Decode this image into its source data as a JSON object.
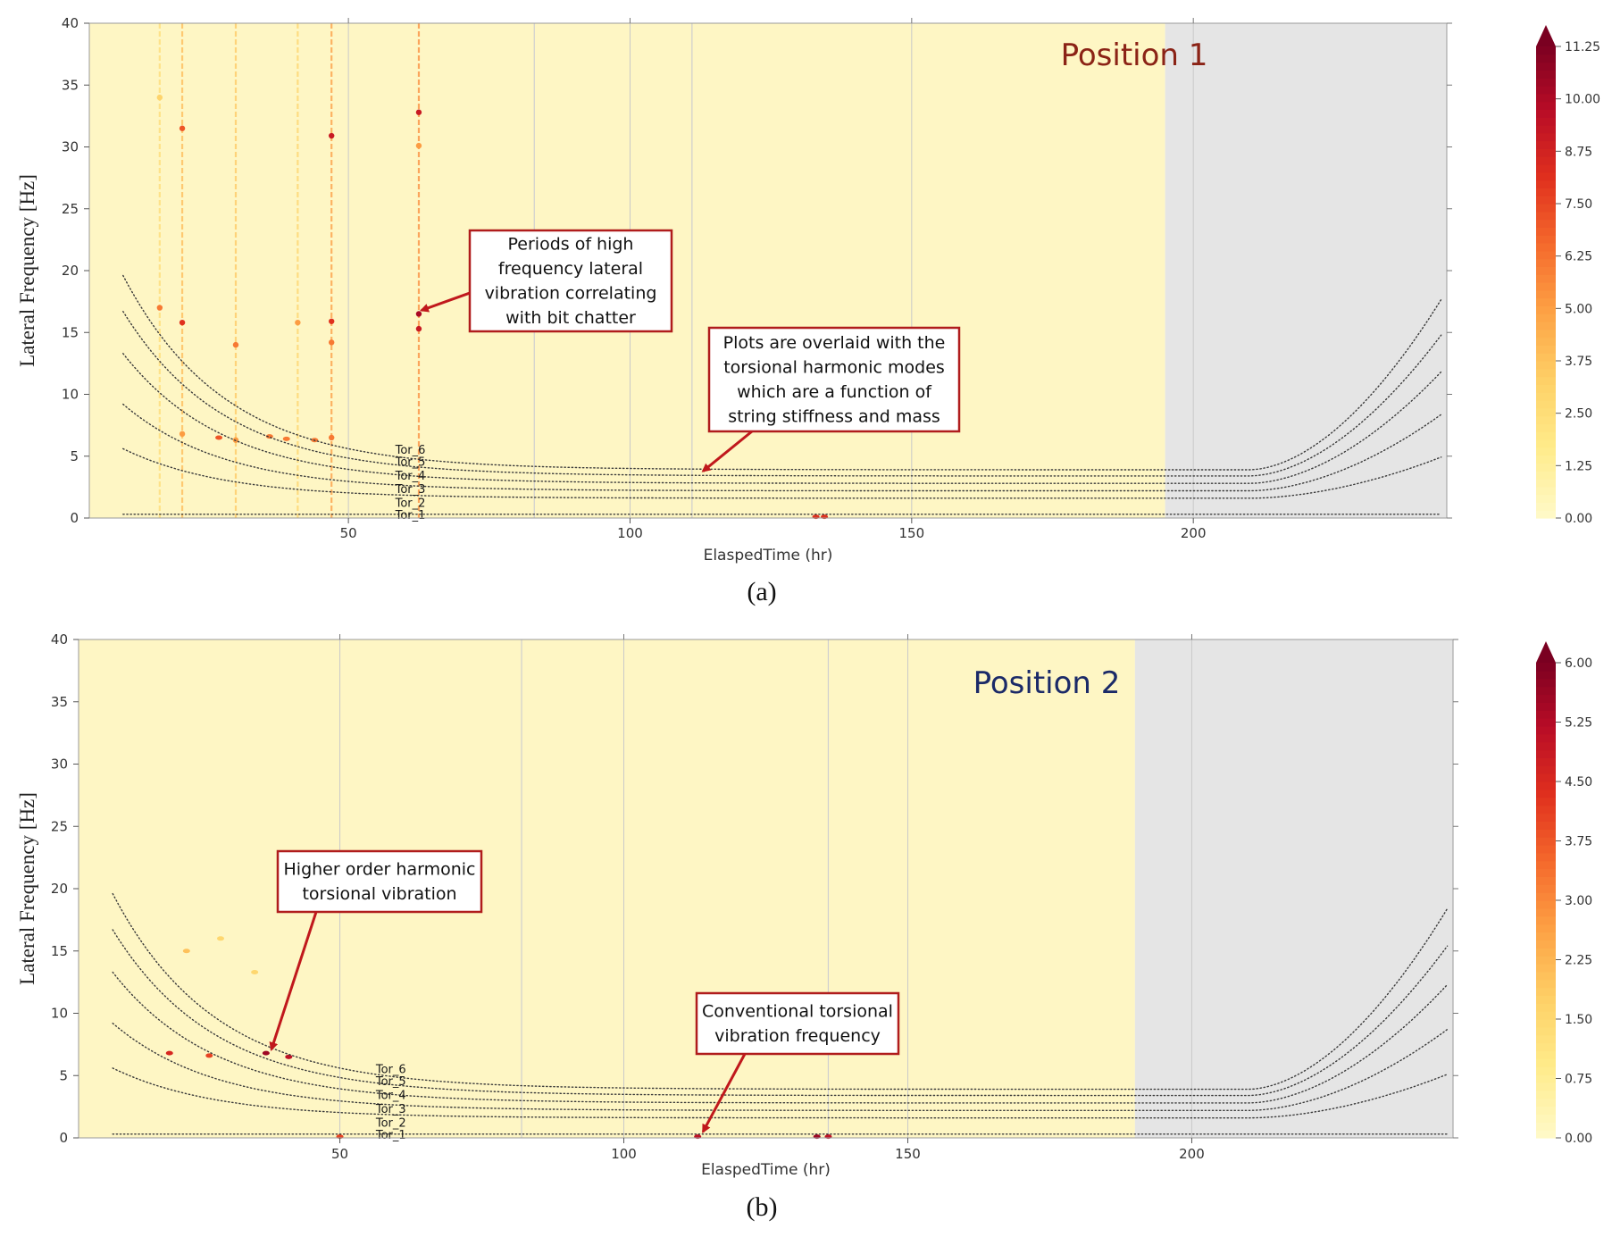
{
  "colors": {
    "plot_bg": "#fef6c4",
    "no_data_bg": "#e5e5e5",
    "annotation_border": "#b01c1c",
    "arrow": "#c0181c",
    "position1_title": "#8b2316",
    "position2_title": "#1b2a68",
    "colormap": [
      "#fff9c6",
      "#ffeb8a",
      "#fed066",
      "#fda245",
      "#f56a2c",
      "#e0301e",
      "#b80c26",
      "#7a0021"
    ]
  },
  "chart_data": [
    {
      "type": "heatmap",
      "panel_label": "(a)",
      "title": "Position 1",
      "xlabel": "ElaspedTime (hr)",
      "ylabel": "Lateral Frequency [Hz]",
      "xlim": [
        4,
        245
      ],
      "ylim": [
        0,
        40
      ],
      "xticks": [
        50,
        100,
        150,
        200
      ],
      "yticks": [
        0,
        5,
        10,
        15,
        20,
        25,
        30,
        35,
        40
      ],
      "grid": "vertical gridlines",
      "colorbar": {
        "min": 0,
        "max": 11.25,
        "ticks": [
          "0.00",
          "1.25",
          "2.50",
          "3.75",
          "5.00",
          "6.25",
          "7.50",
          "8.75",
          "10.00",
          "11.25"
        ],
        "extend": "max"
      },
      "no_data_from_x": 195,
      "torsional_modes": [
        "Tor_1",
        "Tor_2",
        "Tor_3",
        "Tor_4",
        "Tor_5",
        "Tor_6"
      ],
      "annotations": [
        {
          "text": [
            "Periods of high",
            "frequency lateral",
            "vibration correlating",
            "with bit chatter"
          ],
          "points_to": {
            "x": 62,
            "y": 16.5
          }
        },
        {
          "text": [
            "Plots are overlaid with the",
            "torsional harmonic modes",
            "which are a function of",
            "string stiffness and mass"
          ],
          "points_to": {
            "x": 112,
            "y": 3.5
          }
        }
      ],
      "vertical_events": [
        {
          "x": 16.5,
          "intensity": 2.5,
          "hotspots": [
            [
              17.0,
              6
            ],
            [
              34,
              3
            ]
          ]
        },
        {
          "x": 20.5,
          "intensity": 4.0,
          "hotspots": [
            [
              15.8,
              8
            ],
            [
              31.5,
              7
            ],
            [
              6.8,
              5
            ]
          ]
        },
        {
          "x": 30.0,
          "intensity": 3.5,
          "hotspots": [
            [
              14.0,
              6
            ],
            [
              6.3,
              5
            ]
          ]
        },
        {
          "x": 41.0,
          "intensity": 3.0,
          "hotspots": [
            [
              15.8,
              5
            ]
          ]
        },
        {
          "x": 47.0,
          "intensity": 5.0,
          "hotspots": [
            [
              30.9,
              9
            ],
            [
              15.9,
              8
            ],
            [
              14.2,
              6
            ],
            [
              6.5,
              6
            ]
          ]
        },
        {
          "x": 62.5,
          "intensity": 5.5,
          "hotspots": [
            [
              32.8,
              9
            ],
            [
              16.5,
              10
            ],
            [
              15.3,
              9
            ],
            [
              30.1,
              5
            ]
          ]
        }
      ],
      "spots": [
        {
          "x": 27,
          "y": 6.5,
          "v": 7
        },
        {
          "x": 36,
          "y": 6.6,
          "v": 6
        },
        {
          "x": 39,
          "y": 6.4,
          "v": 6
        },
        {
          "x": 44,
          "y": 6.3,
          "v": 6
        },
        {
          "x": 133,
          "y": 0.1,
          "v": 8
        },
        {
          "x": 134.5,
          "y": 0.1,
          "v": 8
        }
      ]
    },
    {
      "type": "heatmap",
      "panel_label": "(b)",
      "title": "Position 2",
      "xlabel": "ElaspedTime (hr)",
      "ylabel": "Lateral Frequency [Hz]",
      "xlim": [
        4,
        246
      ],
      "ylim": [
        0,
        40
      ],
      "xticks": [
        50,
        100,
        150,
        200
      ],
      "yticks": [
        0,
        5,
        10,
        15,
        20,
        25,
        30,
        35,
        40
      ],
      "grid": "vertical gridlines",
      "colorbar": {
        "min": 0,
        "max": 6.0,
        "ticks": [
          "0.00",
          "0.75",
          "1.50",
          "2.25",
          "3.00",
          "3.75",
          "4.50",
          "5.25",
          "6.00"
        ],
        "extend": "max"
      },
      "no_data_from_x": 190,
      "torsional_modes": [
        "Tor_1",
        "Tor_2",
        "Tor_3",
        "Tor_4",
        "Tor_5",
        "Tor_6"
      ],
      "annotations": [
        {
          "text": [
            "Higher order harmonic",
            "torsional vibration"
          ],
          "points_to": {
            "x": 37,
            "y": 6.8
          }
        },
        {
          "text": [
            "Conventional torsional",
            "vibration frequency"
          ],
          "points_to": {
            "x": 113,
            "y": 0.2
          }
        }
      ],
      "vertical_events": [],
      "spots": [
        {
          "x": 20,
          "y": 6.8,
          "v": 4.5
        },
        {
          "x": 27,
          "y": 6.6,
          "v": 4
        },
        {
          "x": 37,
          "y": 6.8,
          "v": 5.5
        },
        {
          "x": 41,
          "y": 6.5,
          "v": 5
        },
        {
          "x": 50,
          "y": 0.1,
          "v": 4
        },
        {
          "x": 113,
          "y": 0.1,
          "v": 5
        },
        {
          "x": 134,
          "y": 0.1,
          "v": 5.5
        },
        {
          "x": 136,
          "y": 0.1,
          "v": 5
        },
        {
          "x": 23,
          "y": 15,
          "v": 2
        },
        {
          "x": 29,
          "y": 16,
          "v": 1.5
        },
        {
          "x": 35,
          "y": 13.3,
          "v": 1.5
        }
      ]
    }
  ]
}
